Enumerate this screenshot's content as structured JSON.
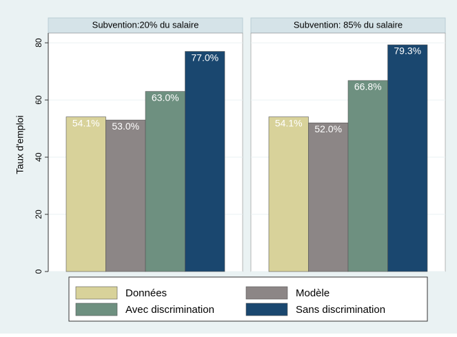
{
  "chart_data": {
    "type": "bar",
    "categories": [
      "Subvention:20%  du salaire",
      "Subvention: 85% du salaire"
    ],
    "y_label": "Taux d'emploi",
    "series": [
      {
        "name": "Données",
        "color": "#d8d29a",
        "values": [
          54.1,
          54.1
        ],
        "value_labels": [
          "54.1%",
          "54.1%"
        ]
      },
      {
        "name": "Modèle",
        "color": "#8c8686",
        "values": [
          53.0,
          52.0
        ],
        "value_labels": [
          "53.0%",
          "52.0%"
        ]
      },
      {
        "name": "Avec discrimination",
        "color": "#6e9080",
        "values": [
          63.0,
          66.8
        ],
        "value_labels": [
          "63.0%",
          "66.8%"
        ]
      },
      {
        "name": "Sans discrimination",
        "color": "#1a476f",
        "values": [
          77.0,
          79.3
        ],
        "value_labels": [
          "77.0%",
          "79.3%"
        ]
      }
    ],
    "ylim": [
      0,
      83.4
    ],
    "yticks": [
      0,
      20,
      40,
      60,
      80
    ],
    "grid": true
  }
}
